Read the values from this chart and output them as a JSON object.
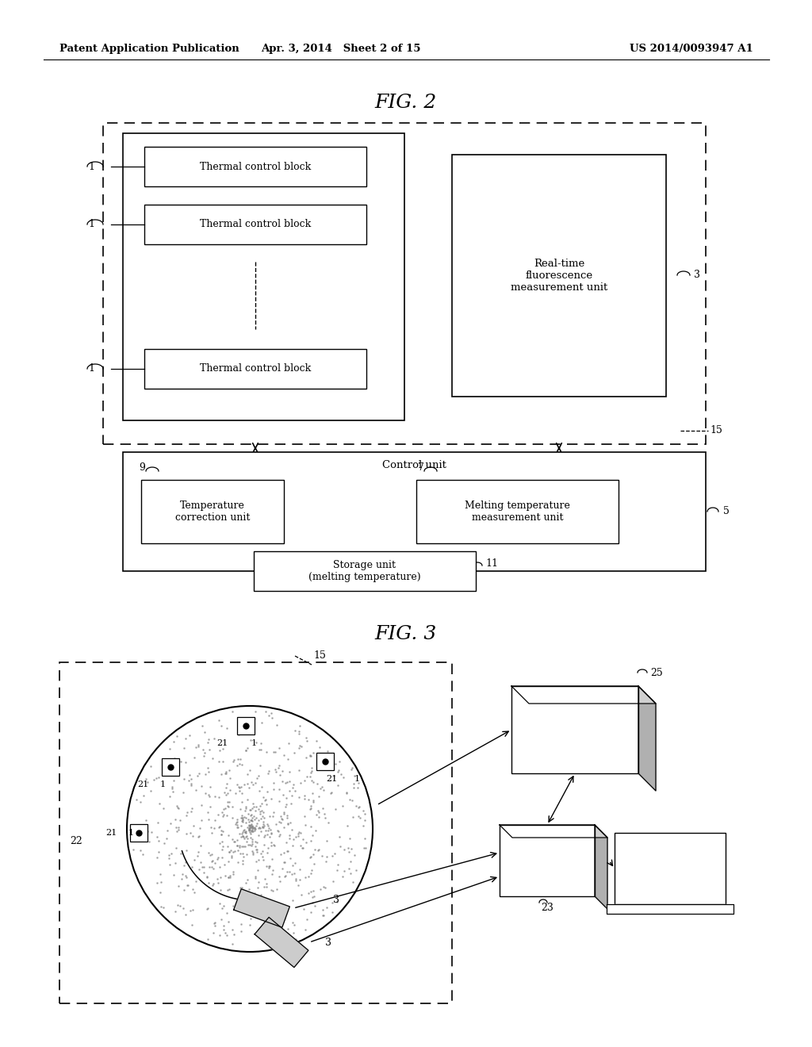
{
  "bg_color": "#ffffff",
  "header_left": "Patent Application Publication",
  "header_center": "Apr. 3, 2014   Sheet 2 of 15",
  "header_right": "US 2014/0093947 A1",
  "fig2_title": "FIG. 2",
  "fig3_title": "FIG. 3"
}
